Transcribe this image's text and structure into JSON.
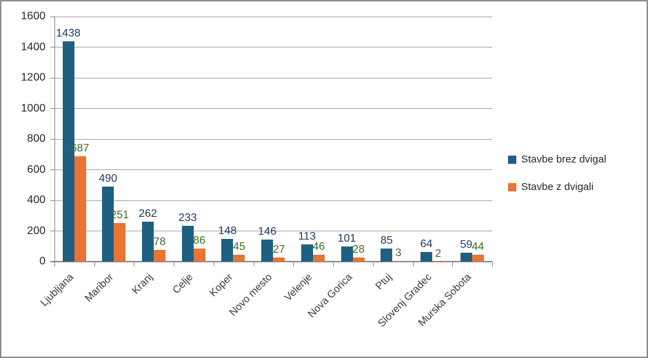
{
  "chart_data": {
    "type": "bar",
    "title": "",
    "xlabel": "",
    "ylabel": "",
    "categories": [
      "Ljubljana",
      "Maribor",
      "Kranj",
      "Celje",
      "Koper",
      "Novo mesto",
      "Velenje",
      "Nova Gorica",
      "Ptuj",
      "Slovenj Gradec",
      "Murska Sobota"
    ],
    "series": [
      {
        "name": "Stavbe brez dvigal",
        "values": [
          1438,
          490,
          262,
          233,
          148,
          146,
          113,
          101,
          85,
          64,
          59
        ],
        "color": "#1F6082",
        "label_color": "#1F3864"
      },
      {
        "name": "Stavbe z dvigali",
        "values": [
          687,
          251,
          78,
          86,
          45,
          27,
          46,
          28,
          3,
          2,
          44
        ],
        "color": "#E97434",
        "label_color": "#3F6B23"
      }
    ],
    "ylim": [
      0,
      1600
    ],
    "yticks": [
      0,
      200,
      400,
      600,
      800,
      1000,
      1200,
      1400,
      1600
    ],
    "grid": true,
    "legend_position": "right",
    "data_labels": true
  },
  "colors": {
    "gridline": "#A6A6A6",
    "axis": "#8A8A8A",
    "frame_border": "#8C8C8C",
    "ytick_text": "#262626",
    "category_text": "#3A3A3A",
    "legend_text": "#262626",
    "background": "#ffffff"
  }
}
